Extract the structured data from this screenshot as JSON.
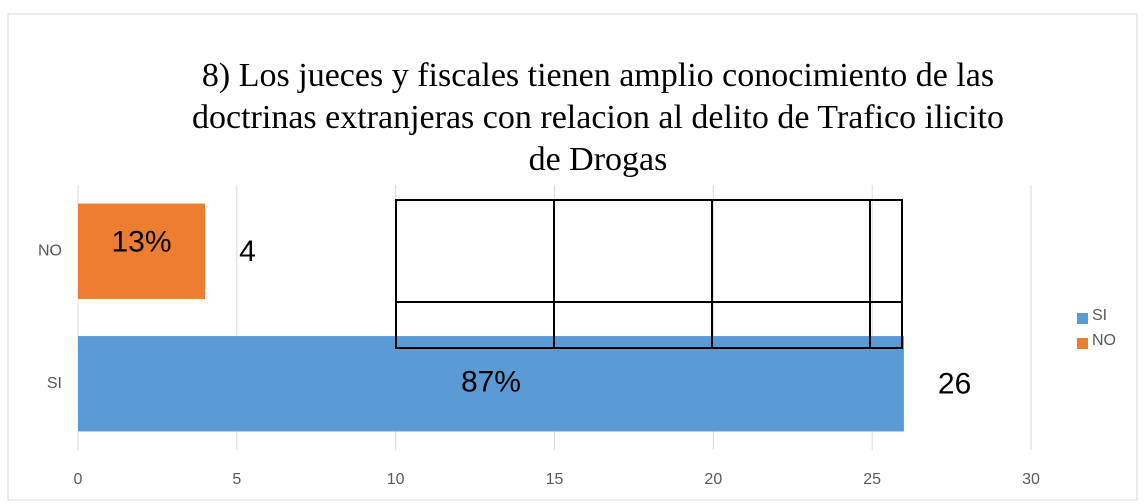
{
  "chart_data": {
    "type": "barh",
    "title_lines": [
      "8) Los jueces y fiscales tienen amplio conocimiento de las",
      "doctrinas extranjeras con relacion al delito de Trafico ilicito",
      "de Drogas"
    ],
    "categories": [
      "NO",
      "SI"
    ],
    "series": [
      {
        "name": "SI",
        "color": "#5b9bd5",
        "values": [
          null,
          26
        ],
        "percent_labels": [
          null,
          "87%"
        ]
      },
      {
        "name": "NO",
        "color": "#ed7d31",
        "values": [
          4,
          null
        ],
        "percent_labels": [
          "13%",
          null
        ]
      }
    ],
    "xlim": [
      0,
      30
    ],
    "xticks": [
      0,
      5,
      10,
      15,
      20,
      25,
      30
    ],
    "grid": true,
    "legend": "right"
  }
}
